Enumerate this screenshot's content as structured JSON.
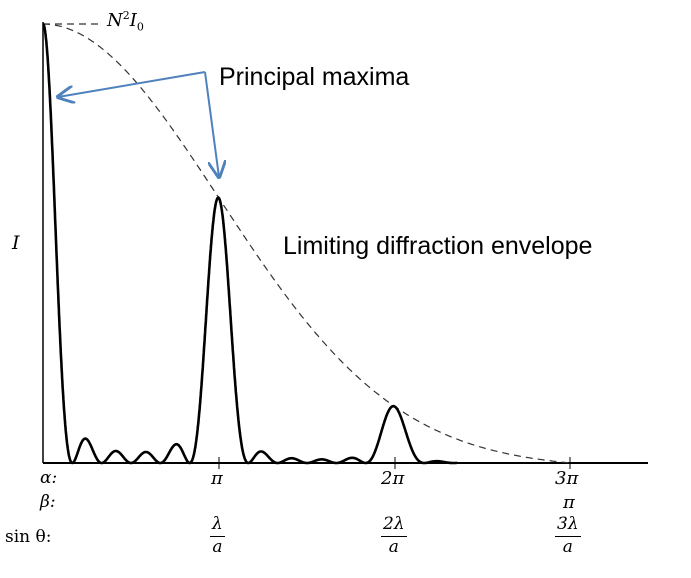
{
  "labels": {
    "peak_label": "N²I₀",
    "peak_label_base": "N",
    "peak_label_sup": "2",
    "peak_label_i": "I",
    "peak_label_sub": "0",
    "y_axis": "I",
    "principal_maxima": "Principal maxima",
    "envelope": "Limiting diffraction envelope"
  },
  "axis_rows": {
    "alpha": "α:",
    "beta": "β:",
    "sin_theta": "sin θ:"
  },
  "ticks": {
    "alpha_pi": "π",
    "alpha_2pi": "2π",
    "alpha_3pi": "3π",
    "beta_pi": "π",
    "sin_1_num": "λ",
    "sin_1_den": "a",
    "sin_2_num": "2λ",
    "sin_2_den": "a",
    "sin_3_num": "3λ",
    "sin_3_den": "a"
  },
  "colors": {
    "curve": "#000000",
    "envelope": "#333333",
    "arrow": "#4f81bd"
  }
}
